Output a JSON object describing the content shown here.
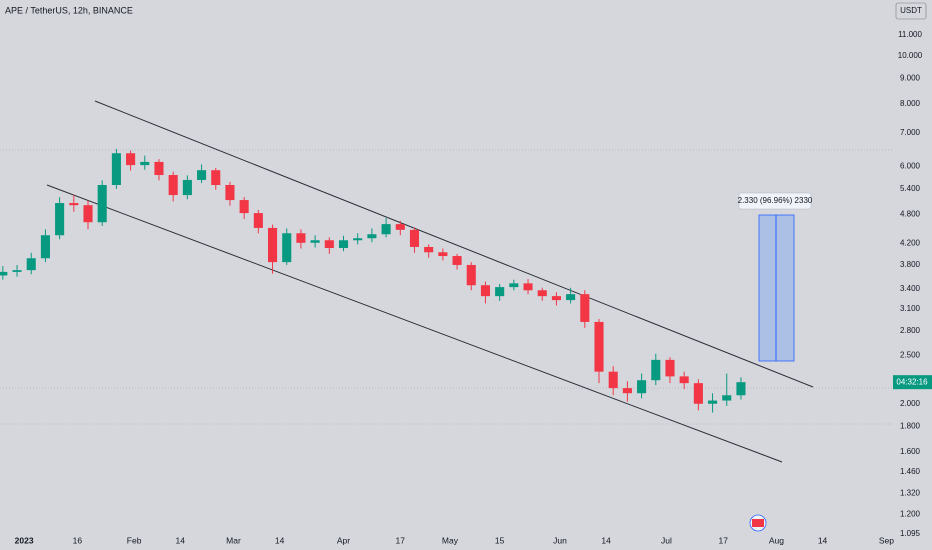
{
  "chart_data": {
    "type": "candlestick",
    "title": "APE / TetherUS, 12h, BINANCE",
    "currency": "USDT",
    "countdown": "04:32:16",
    "annotation": "2.330 (96.96%) 2330",
    "log_scale": true,
    "up_color": "#089981",
    "down_color": "#f23645",
    "xlim": [
      -6.8,
      244
    ],
    "ylim": [
      1.08,
      12.94
    ],
    "xticks": [
      {
        "value": 0,
        "label": "2023"
      },
      {
        "value": 15,
        "label": "16"
      },
      {
        "value": 31,
        "label": "Feb"
      },
      {
        "value": 44,
        "label": "14"
      },
      {
        "value": 59,
        "label": "Mar"
      },
      {
        "value": 72,
        "label": "14"
      },
      {
        "value": 90,
        "label": "Apr"
      },
      {
        "value": 106,
        "label": "17"
      },
      {
        "value": 120,
        "label": "May"
      },
      {
        "value": 134,
        "label": "15"
      },
      {
        "value": 151,
        "label": "Jun"
      },
      {
        "value": 164,
        "label": "14"
      },
      {
        "value": 181,
        "label": "Jul"
      },
      {
        "value": 197,
        "label": "17"
      },
      {
        "value": 212,
        "label": "Aug"
      },
      {
        "value": 225,
        "label": "14"
      },
      {
        "value": 243,
        "label": "Sep"
      }
    ],
    "yticks": [
      {
        "value": 11,
        "label": "11.000"
      },
      {
        "value": 10,
        "label": "10.000"
      },
      {
        "value": 9,
        "label": "9.000"
      },
      {
        "value": 8,
        "label": "8.000"
      },
      {
        "value": 7,
        "label": "7.000"
      },
      {
        "value": 6,
        "label": "6.000"
      },
      {
        "value": 5.4,
        "label": "5.400"
      },
      {
        "value": 4.8,
        "label": "4.800"
      },
      {
        "value": 4.2,
        "label": "4.200"
      },
      {
        "value": 3.8,
        "label": "3.800"
      },
      {
        "value": 3.4,
        "label": "3.400"
      },
      {
        "value": 3.1,
        "label": "3.100"
      },
      {
        "value": 2.8,
        "label": "2.800"
      },
      {
        "value": 2.5,
        "label": "2.500"
      },
      {
        "value": 2,
        "label": "2.000"
      },
      {
        "value": 1.8,
        "label": "1.800"
      },
      {
        "value": 1.6,
        "label": "1.600"
      },
      {
        "value": 1.46,
        "label": "1.460"
      },
      {
        "value": 1.32,
        "label": "1.320"
      },
      {
        "value": 1.2,
        "label": "1.200"
      },
      {
        "value": 1.095,
        "label": "1.095"
      }
    ],
    "x": [
      -6,
      -2,
      2,
      6,
      10,
      14,
      18,
      22,
      26,
      30,
      34,
      38,
      42,
      46,
      50,
      54,
      58,
      62,
      66,
      70,
      74,
      78,
      82,
      86,
      90,
      94,
      98,
      102,
      106,
      110,
      114,
      118,
      122,
      126,
      130,
      134,
      138,
      142,
      146,
      150,
      154,
      158,
      162,
      166,
      170,
      174,
      178,
      182,
      186,
      190,
      194,
      198,
      202
    ],
    "open": [
      3.62,
      3.68,
      3.71,
      3.92,
      4.36,
      5.06,
      5.01,
      4.63,
      5.5,
      6.37,
      6.03,
      6.12,
      5.76,
      5.25,
      5.63,
      5.89,
      5.5,
      5.13,
      4.83,
      4.51,
      3.85,
      4.4,
      4.21,
      4.26,
      4.11,
      4.26,
      4.3,
      4.38,
      4.59,
      4.47,
      4.13,
      4.03,
      3.96,
      3.8,
      3.46,
      3.29,
      3.43,
      3.49,
      3.38,
      3.29,
      3.23,
      3.32,
      2.92,
      2.32,
      2.15,
      2.1,
      2.23,
      2.45,
      2.27,
      2.2,
      2.0,
      2.03,
      2.08
    ],
    "high": [
      3.78,
      3.8,
      4.02,
      4.48,
      5.2,
      5.25,
      5.12,
      5.62,
      6.5,
      6.45,
      6.3,
      6.2,
      5.85,
      5.75,
      6.05,
      5.95,
      5.58,
      5.2,
      4.9,
      4.58,
      4.5,
      4.48,
      4.36,
      4.32,
      4.35,
      4.4,
      4.5,
      4.72,
      4.66,
      4.52,
      4.18,
      4.1,
      4.0,
      3.85,
      3.52,
      3.48,
      3.55,
      3.56,
      3.42,
      3.35,
      3.42,
      3.38,
      2.96,
      2.38,
      2.22,
      2.3,
      2.52,
      2.48,
      2.32,
      2.24,
      2.1,
      2.3,
      2.26
    ],
    "low": [
      3.55,
      3.6,
      3.64,
      3.85,
      4.28,
      4.86,
      4.48,
      4.55,
      5.4,
      5.88,
      5.9,
      5.62,
      5.1,
      5.15,
      5.55,
      5.38,
      5.0,
      4.7,
      4.4,
      3.65,
      3.8,
      4.1,
      4.12,
      4.0,
      4.05,
      4.18,
      4.22,
      4.32,
      4.36,
      4.02,
      3.93,
      3.88,
      3.72,
      3.38,
      3.18,
      3.22,
      3.38,
      3.32,
      3.22,
      3.15,
      3.18,
      2.84,
      2.2,
      2.08,
      2.02,
      2.05,
      2.18,
      2.2,
      2.14,
      1.94,
      1.92,
      1.98,
      2.04
    ],
    "close": [
      3.68,
      3.71,
      3.92,
      4.36,
      5.06,
      5.01,
      4.63,
      5.5,
      6.37,
      6.03,
      6.12,
      5.76,
      5.25,
      5.63,
      5.89,
      5.5,
      5.13,
      4.83,
      4.51,
      3.85,
      4.4,
      4.21,
      4.26,
      4.11,
      4.26,
      4.3,
      4.38,
      4.59,
      4.47,
      4.13,
      4.03,
      3.96,
      3.8,
      3.46,
      3.29,
      3.43,
      3.49,
      3.38,
      3.29,
      3.23,
      3.32,
      2.92,
      2.32,
      2.15,
      2.1,
      2.23,
      2.45,
      2.27,
      2.2,
      2.0,
      2.03,
      2.08,
      2.21
    ]
  }
}
